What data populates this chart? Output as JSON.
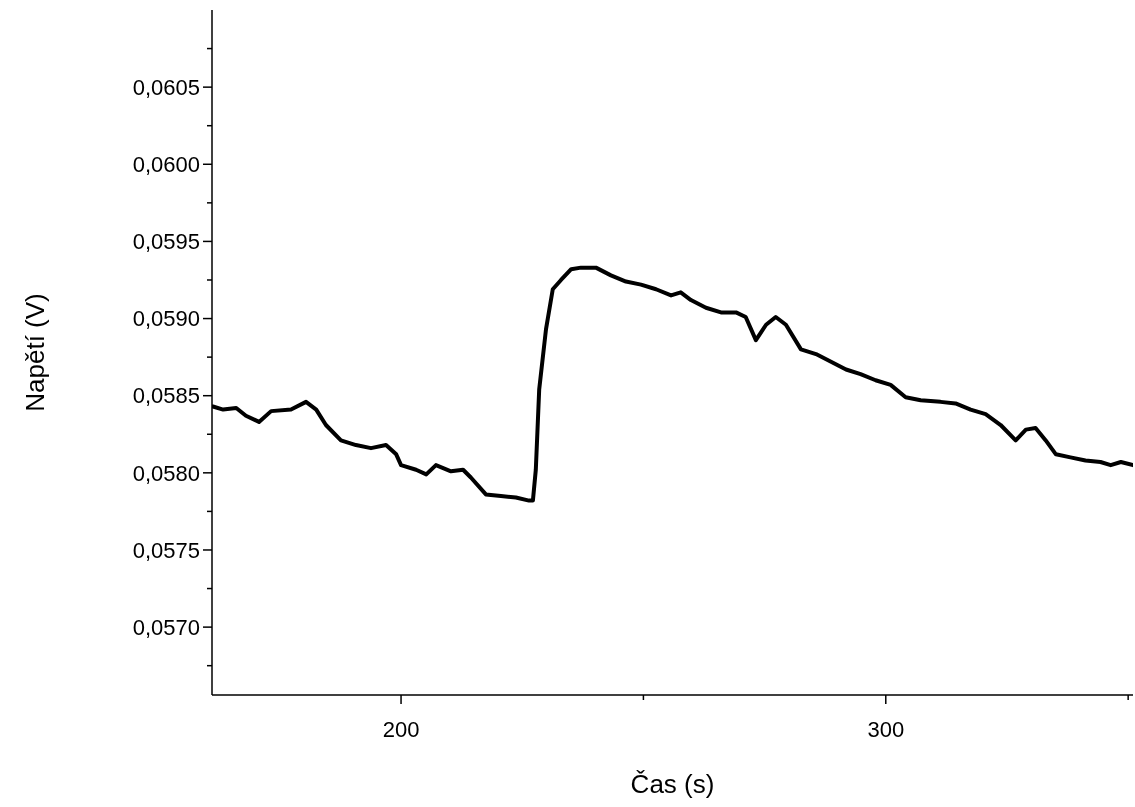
{
  "chart_data": {
    "type": "line",
    "xlabel": "Čas (s)",
    "ylabel": "Napětí (V)",
    "xlim": [
      161,
      351
    ],
    "xticks": [
      200,
      {
        "value": 250,
        "label": null
      },
      300,
      {
        "value": 350,
        "label": null
      }
    ],
    "ylim": [
      0.05656,
      0.061
    ],
    "yticks": [
      {
        "value": 0.05675,
        "label": null
      },
      {
        "value": 0.057,
        "label": "0,0570"
      },
      {
        "value": 0.05725,
        "label": null
      },
      {
        "value": 0.0575,
        "label": "0,0575"
      },
      {
        "value": 0.05775,
        "label": null
      },
      {
        "value": 0.058,
        "label": "0,0580"
      },
      {
        "value": 0.05825,
        "label": null
      },
      {
        "value": 0.0585,
        "label": "0,0585"
      },
      {
        "value": 0.05875,
        "label": null
      },
      {
        "value": 0.059,
        "label": "0,0590"
      },
      {
        "value": 0.05925,
        "label": null
      },
      {
        "value": 0.0595,
        "label": "0,0595"
      },
      {
        "value": 0.05975,
        "label": null
      },
      {
        "value": 0.06,
        "label": "0,0600"
      },
      {
        "value": 0.06025,
        "label": null
      },
      {
        "value": 0.0605,
        "label": "0,0605"
      },
      {
        "value": 0.06075,
        "label": null
      }
    ],
    "grid": false,
    "marker": "none",
    "line_style": "solid",
    "x": [
      161.2,
      163.3,
      166.0,
      168.0,
      170.7,
      173.2,
      177.3,
      180.4,
      182.5,
      184.5,
      187.6,
      190.7,
      193.8,
      196.9,
      199.0,
      200.0,
      203.1,
      205.2,
      207.2,
      210.3,
      212.8,
      214.4,
      217.5,
      220.6,
      223.7,
      226.4,
      227.2,
      227.8,
      228.5,
      229.9,
      231.3,
      233.0,
      235.1,
      237.1,
      240.2,
      243.3,
      246.4,
      249.5,
      252.6,
      255.7,
      257.7,
      259.8,
      262.9,
      266.0,
      269.1,
      271.1,
      273.2,
      275.3,
      277.3,
      279.4,
      282.5,
      285.6,
      288.7,
      291.8,
      294.8,
      297.9,
      301.0,
      304.1,
      307.2,
      311.3,
      314.4,
      317.5,
      320.6,
      323.7,
      326.8,
      328.9,
      330.9,
      333.0,
      335.1,
      338.1,
      341.2,
      344.3,
      346.4,
      348.5,
      351.0
    ],
    "series": [
      {
        "color": "#000000",
        "values": [
          0.05843,
          0.05841,
          0.05842,
          0.05837,
          0.05833,
          0.0584,
          0.05841,
          0.05846,
          0.05841,
          0.05831,
          0.05821,
          0.05818,
          0.05816,
          0.05818,
          0.05812,
          0.05805,
          0.05802,
          0.05799,
          0.05805,
          0.05801,
          0.05802,
          0.05797,
          0.05786,
          0.05785,
          0.05784,
          0.05782,
          0.05782,
          0.05802,
          0.05854,
          0.05893,
          0.05919,
          0.05925,
          0.05932,
          0.05933,
          0.05933,
          0.05928,
          0.05924,
          0.05922,
          0.05919,
          0.05915,
          0.05917,
          0.05912,
          0.05907,
          0.05904,
          0.05904,
          0.05901,
          0.05886,
          0.05896,
          0.05901,
          0.05896,
          0.0588,
          0.05877,
          0.05872,
          0.05867,
          0.05864,
          0.0586,
          0.05857,
          0.05849,
          0.05847,
          0.05846,
          0.05845,
          0.05841,
          0.05838,
          0.05831,
          0.05821,
          0.05828,
          0.05829,
          0.05821,
          0.05812,
          0.0581,
          0.05808,
          0.05807,
          0.05805,
          0.05807,
          0.05805
        ]
      }
    ]
  }
}
